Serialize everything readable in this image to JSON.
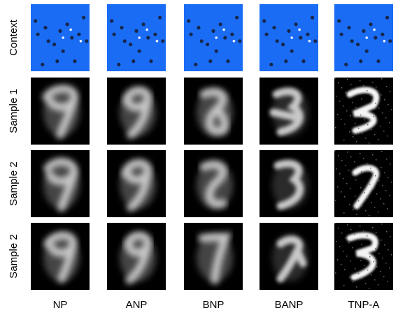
{
  "row_labels": [
    "Context",
    "Sample 1",
    "Sample 2",
    "Sample 2"
  ],
  "column_labels": [
    "NP",
    "ANP",
    "BNP",
    "BANP",
    "TNP-A"
  ]
}
